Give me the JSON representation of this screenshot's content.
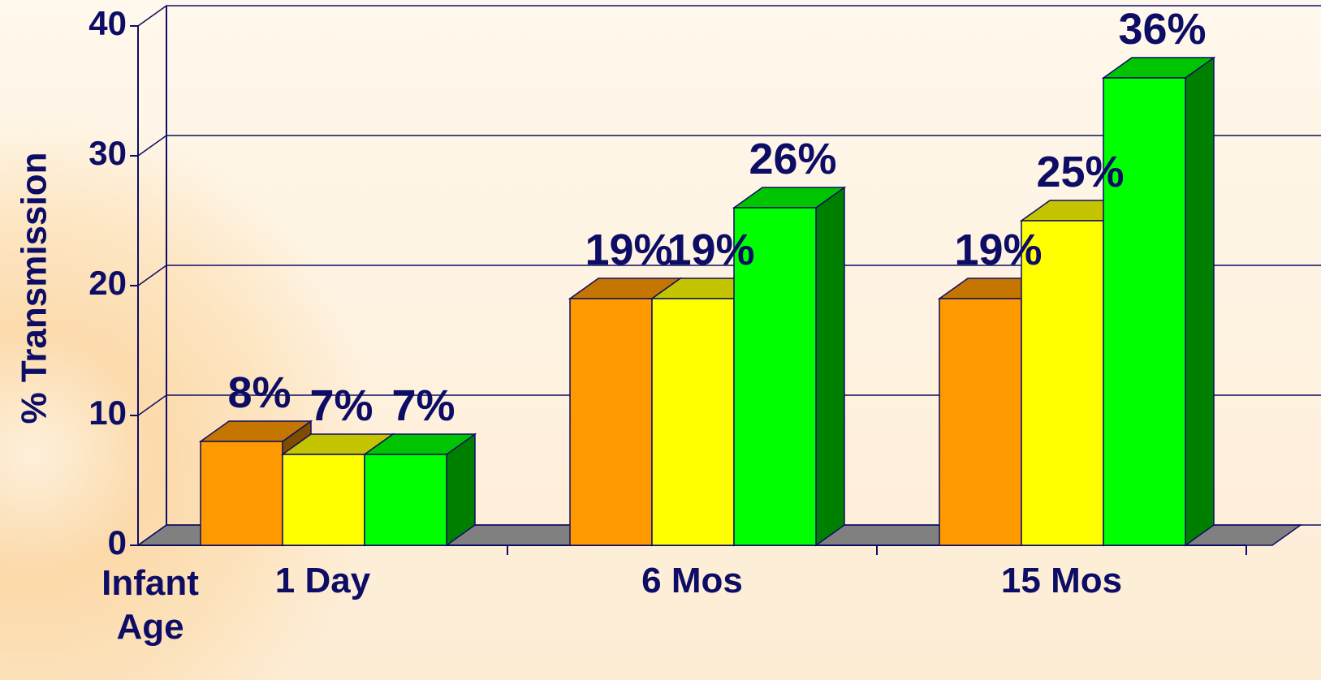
{
  "chart_data": {
    "type": "bar3d",
    "y_label": "% Transmission",
    "x_label": "Infant Age",
    "categories": [
      "1 Day",
      "6 Mos",
      "15 Mos"
    ],
    "series": [
      {
        "color": "#ff9900",
        "values": [
          8,
          19,
          19
        ],
        "value_labels": [
          "8%",
          "19%",
          "19%"
        ]
      },
      {
        "color": "#ffff00",
        "values": [
          7,
          19,
          25
        ],
        "value_labels": [
          "7%",
          "19%",
          "25%"
        ]
      },
      {
        "color": "#00ff00",
        "values": [
          7,
          26,
          36
        ],
        "value_labels": [
          "7%",
          "26%",
          "36%"
        ]
      }
    ],
    "ylim": [
      0,
      40
    ],
    "yticks": [
      0,
      10,
      20,
      30,
      40
    ],
    "grid": true
  }
}
